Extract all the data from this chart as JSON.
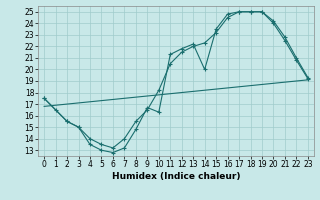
{
  "xlabel": "Humidex (Indice chaleur)",
  "bg_color": "#c8e8e8",
  "line_color": "#1a6e6e",
  "grid_color": "#a0cccc",
  "xlim": [
    -0.5,
    23.5
  ],
  "ylim": [
    12.5,
    25.5
  ],
  "line1_x": [
    0,
    1,
    2,
    3,
    4,
    5,
    6,
    7,
    8,
    9,
    10,
    11,
    12,
    13,
    14,
    15,
    16,
    17,
    18,
    19,
    20,
    21,
    22,
    23
  ],
  "line1_y": [
    17.5,
    16.5,
    15.5,
    15.0,
    13.5,
    13.0,
    12.8,
    13.2,
    14.8,
    16.7,
    16.3,
    21.3,
    21.8,
    22.2,
    20.0,
    23.5,
    24.8,
    25.0,
    25.0,
    25.0,
    24.0,
    22.5,
    20.8,
    19.2
  ],
  "line2_x": [
    0,
    2,
    3,
    4,
    5,
    6,
    7,
    8,
    9,
    10,
    11,
    12,
    13,
    14,
    15,
    16,
    17,
    18,
    19,
    20,
    21,
    22,
    23
  ],
  "line2_y": [
    17.5,
    15.5,
    15.0,
    14.0,
    13.5,
    13.2,
    14.0,
    15.5,
    16.5,
    18.2,
    20.5,
    21.5,
    22.0,
    22.3,
    23.2,
    24.5,
    25.0,
    25.0,
    25.0,
    24.2,
    22.8,
    21.0,
    19.3
  ],
  "line3_x": [
    0,
    23
  ],
  "line3_y": [
    16.8,
    19.1
  ],
  "xtick_fontsize": 5.5,
  "ytick_fontsize": 5.5,
  "xlabel_fontsize": 6.5
}
